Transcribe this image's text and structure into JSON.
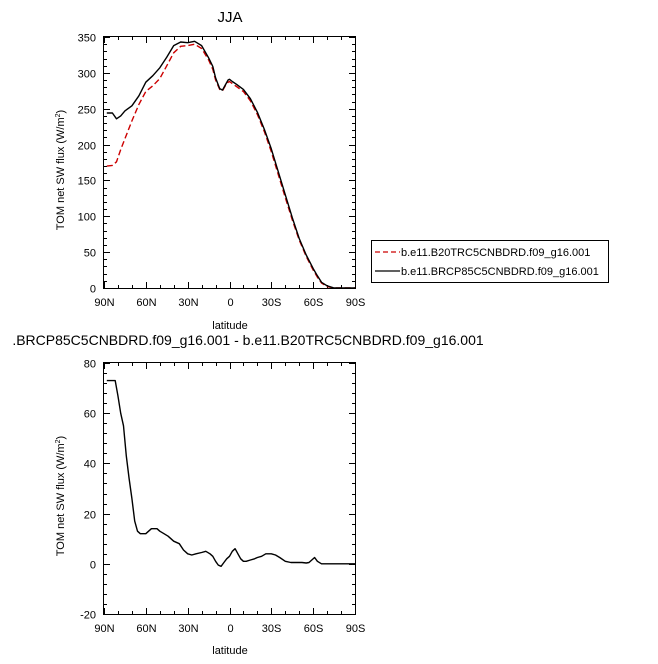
{
  "chart_data": [
    {
      "type": "line",
      "title": "JJA",
      "xlabel": "latitude",
      "ylabel": "TOM net SW flux (W/m²)",
      "ylabel_main": "TOM net SW flux (W/m",
      "ylabel_sup": "2",
      "ylabel_close": ")",
      "xlim": [
        90,
        -90
      ],
      "ylim": [
        0,
        350
      ],
      "x_ticks": [
        90,
        60,
        30,
        0,
        -30,
        -60,
        -90
      ],
      "x_tick_labels": [
        "90N",
        "60N",
        "30N",
        "0",
        "30S",
        "60S",
        "90S"
      ],
      "y_ticks": [
        0,
        50,
        100,
        150,
        200,
        250,
        300,
        350
      ],
      "y_tick_labels": [
        "0",
        "50",
        "100",
        "150",
        "200",
        "250",
        "300",
        "350"
      ],
      "legend_position": "right",
      "series": [
        {
          "name": "b.e11.B20TRC5CNBDRD.f09_g16.001",
          "color": "#cc0000",
          "style": "dashed",
          "x": [
            88,
            84,
            81,
            78,
            75,
            70,
            65,
            60,
            55,
            50,
            45,
            40,
            35,
            30,
            25,
            20,
            15,
            12,
            10,
            7,
            5,
            3,
            1,
            0,
            -2,
            -5,
            -10,
            -15,
            -20,
            -25,
            -30,
            -35,
            -40,
            -45,
            -50,
            -55,
            -60,
            -63,
            -66,
            -70,
            -75,
            -80,
            -85,
            -90
          ],
          "y": [
            170,
            171,
            176,
            193,
            208,
            233,
            256,
            274,
            282,
            292,
            310,
            328,
            337,
            338,
            340,
            334,
            318,
            305,
            290,
            277,
            275,
            282,
            287,
            288,
            285,
            281,
            274,
            261,
            242,
            218,
            190,
            158,
            126,
            95,
            67,
            44,
            25,
            15,
            7,
            2,
            0,
            0,
            0,
            0
          ]
        },
        {
          "name": "b.e11.BRCP85C5CNBDRD.f09_g16.001",
          "color": "#000000",
          "style": "solid",
          "x": [
            88,
            84,
            81,
            78,
            75,
            70,
            65,
            60,
            55,
            50,
            45,
            40,
            35,
            30,
            25,
            20,
            15,
            12,
            10,
            7,
            5,
            3,
            1,
            0,
            -2,
            -5,
            -10,
            -15,
            -20,
            -25,
            -30,
            -35,
            -40,
            -45,
            -50,
            -55,
            -60,
            -63,
            -66,
            -70,
            -75,
            -80,
            -85,
            -90
          ],
          "y": [
            244,
            244,
            236,
            240,
            247,
            254,
            268,
            287,
            296,
            307,
            322,
            338,
            343,
            342,
            344,
            338,
            321,
            309,
            293,
            278,
            276,
            283,
            290,
            291,
            288,
            284,
            277,
            264,
            245,
            221,
            194,
            162,
            130,
            98,
            69,
            46,
            27,
            17,
            8,
            3,
            0,
            0,
            0,
            0
          ]
        }
      ]
    },
    {
      "type": "line",
      "title": ".BRCP85C5CNBDRD.f09_g16.001 - b.e11.B20TRC5CNBDRD.f09_g16.001",
      "xlabel": "latitude",
      "ylabel": "TOM net SW flux (W/m²)",
      "ylabel_main": "TOM net SW flux (W/m",
      "ylabel_sup": "2",
      "ylabel_close": ")",
      "xlim": [
        90,
        -90
      ],
      "ylim": [
        -20,
        80
      ],
      "x_ticks": [
        90,
        60,
        30,
        0,
        -30,
        -60,
        -90
      ],
      "x_tick_labels": [
        "90N",
        "60N",
        "30N",
        "0",
        "30S",
        "60S",
        "90S"
      ],
      "y_ticks": [
        -20,
        0,
        20,
        40,
        60,
        80
      ],
      "y_tick_labels": [
        "-20",
        "0",
        "20",
        "40",
        "60",
        "80"
      ],
      "series": [
        {
          "color": "#000000",
          "style": "solid",
          "x": [
            88,
            85,
            82,
            80,
            78,
            76,
            74,
            72,
            70,
            68,
            66,
            64,
            62,
            60,
            58,
            56,
            54,
            52,
            50,
            47,
            44,
            40,
            36,
            33,
            30,
            27,
            24,
            20,
            17,
            14,
            12,
            10,
            8,
            6,
            4,
            2,
            0,
            -2,
            -4,
            -6,
            -8,
            -10,
            -12,
            -15,
            -18,
            -20,
            -23,
            -26,
            -30,
            -33,
            -36,
            -40,
            -44,
            -48,
            -52,
            -55,
            -57,
            -59,
            -61,
            -63,
            -66,
            -70,
            -75,
            -80,
            -85,
            -90
          ],
          "y": [
            73,
            73,
            73,
            67,
            60,
            55,
            43,
            34,
            26,
            17,
            13,
            12,
            12,
            12,
            13,
            14,
            14,
            14,
            13,
            12,
            11,
            9,
            8,
            5.5,
            4,
            3.5,
            4,
            4.5,
            5,
            4,
            3,
            1,
            -0.5,
            -1,
            0.5,
            2,
            3,
            5,
            6,
            4,
            2,
            1,
            1,
            1.5,
            2,
            2.5,
            3,
            4,
            4,
            3.5,
            2.5,
            1,
            0.5,
            0.5,
            0.5,
            0.3,
            0.5,
            1.5,
            2.5,
            1,
            0,
            0,
            0,
            0,
            0,
            0
          ]
        }
      ]
    }
  ]
}
